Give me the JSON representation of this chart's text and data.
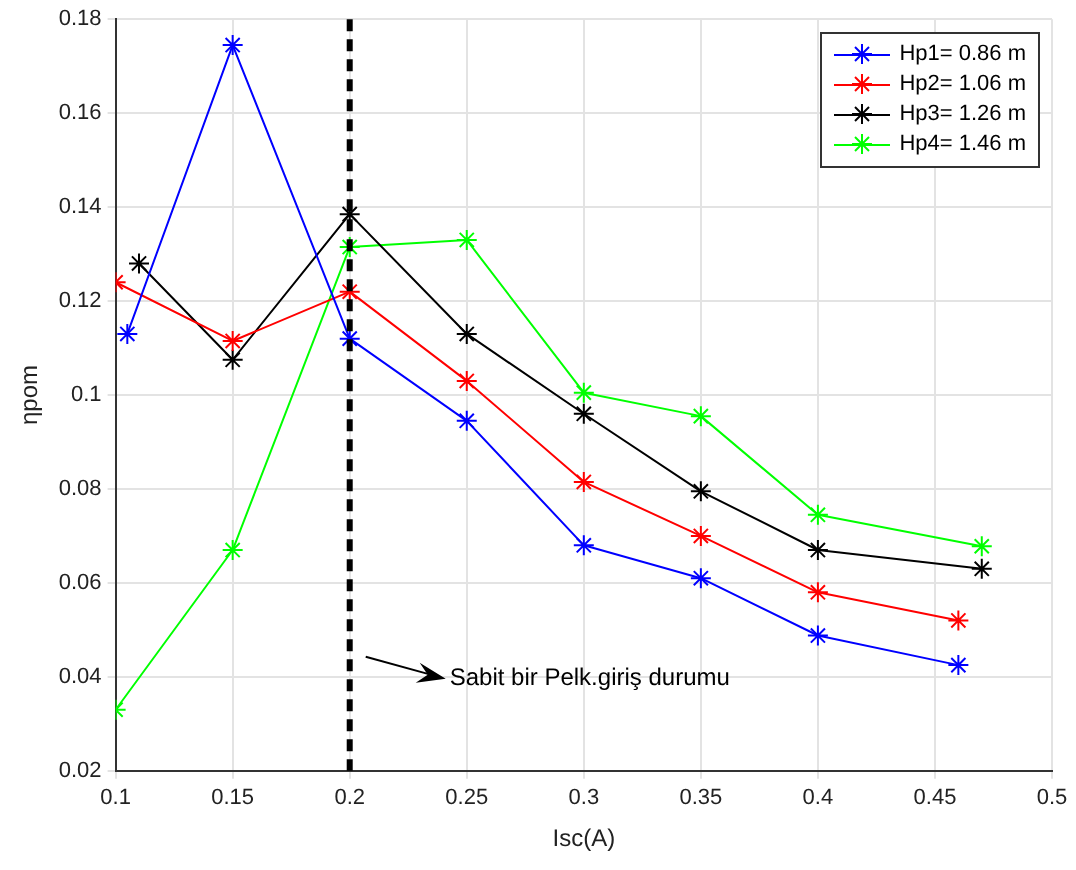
{
  "chart_data": {
    "type": "line",
    "xlabel": "Isc(A)",
    "ylabel": "ηpom",
    "marker": "cross",
    "line_style": "solid",
    "grid": true,
    "legend": "top right",
    "xlim": [
      0.1,
      0.5
    ],
    "xticks": [
      0.1,
      0.15,
      0.2,
      0.25,
      0.3,
      0.35,
      0.4,
      0.45,
      0.5
    ],
    "ylim": [
      0.02,
      0.18
    ],
    "yticks": [
      0.02,
      0.04,
      0.06,
      0.08,
      0.1,
      0.12,
      0.14,
      0.16,
      0.18
    ],
    "series": [
      {
        "name": "Hp1= 0.86 m",
        "color": "#0000ff",
        "x": [
          0.105,
          0.15,
          0.2,
          0.25,
          0.3,
          0.35,
          0.4,
          0.46
        ],
        "values": [
          0.113,
          0.1745,
          0.112,
          0.0945,
          0.068,
          0.061,
          0.0488,
          0.0425
        ]
      },
      {
        "name": "Hp2= 1.06 m",
        "color": "#ff0000",
        "x": [
          0.1,
          0.15,
          0.2,
          0.25,
          0.3,
          0.35,
          0.4,
          0.46
        ],
        "values": [
          0.124,
          0.1115,
          0.122,
          0.103,
          0.0815,
          0.07,
          0.058,
          0.052
        ]
      },
      {
        "name": "Hp3= 1.26 m",
        "color": "#000000",
        "x": [
          0.11,
          0.15,
          0.2,
          0.25,
          0.3,
          0.35,
          0.4,
          0.47
        ],
        "values": [
          0.128,
          0.1075,
          0.1385,
          0.113,
          0.096,
          0.0795,
          0.067,
          0.063
        ]
      },
      {
        "name": "Hp4= 1.46 m",
        "color": "#00ff00",
        "x": [
          0.1,
          0.15,
          0.2,
          0.25,
          0.3,
          0.35,
          0.4,
          0.47
        ],
        "values": [
          0.033,
          0.067,
          0.1315,
          0.133,
          0.1005,
          0.0955,
          0.0745,
          0.0678
        ]
      }
    ],
    "ref_lines": [
      {
        "axis": "x",
        "value": 0.2,
        "color": "#000000",
        "line_style": "dashed"
      }
    ],
    "annotations": [
      "Sabit bir Pelk.giriş durumu"
    ]
  }
}
